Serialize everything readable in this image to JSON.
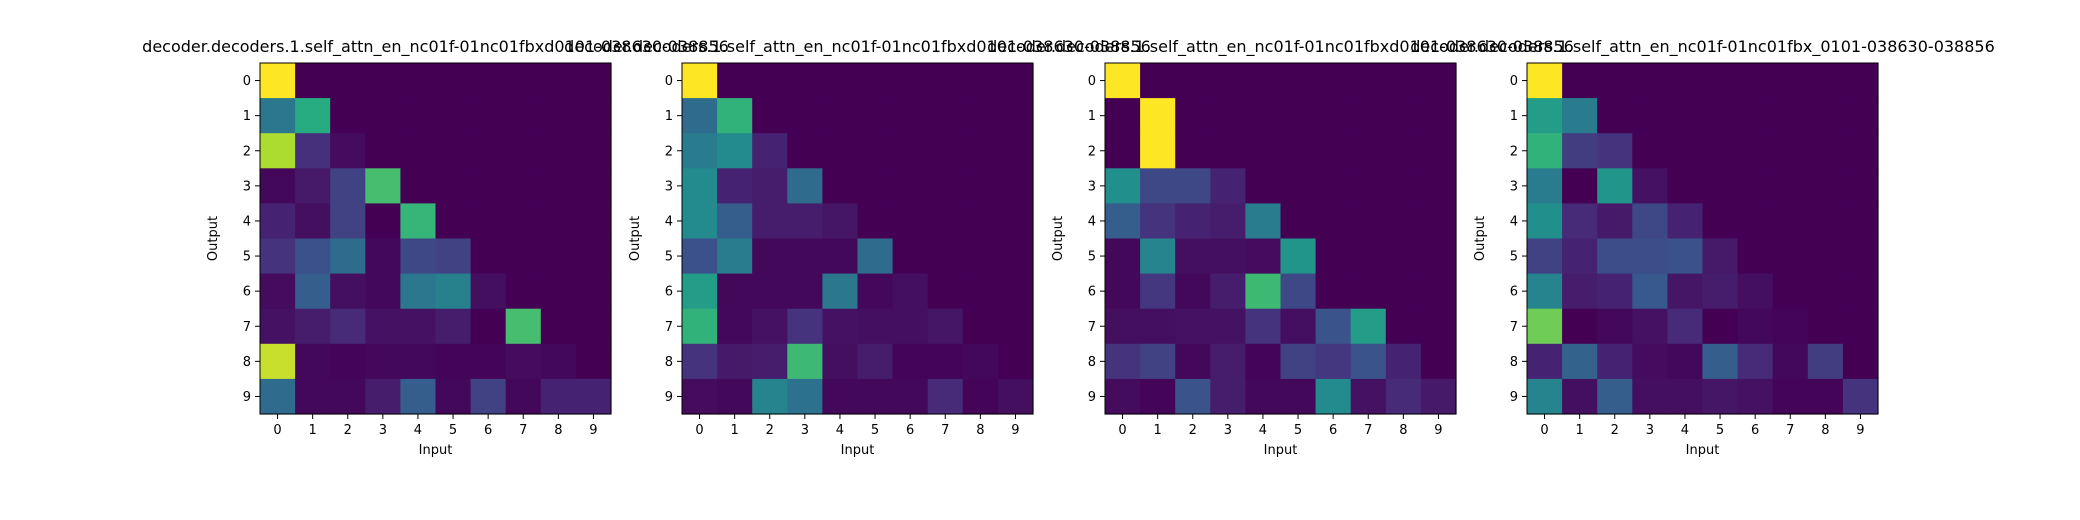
{
  "chart_data": [
    {
      "type": "heatmap",
      "title": "decoder.decoders.1.self_attn_en_nc01f-01nc01fbxd0101-038630-038856",
      "xlabel": "Input",
      "ylabel": "Output",
      "x_ticks": [
        "0",
        "1",
        "2",
        "3",
        "4",
        "5",
        "6",
        "7",
        "8",
        "9"
      ],
      "y_ticks": [
        "0",
        "1",
        "2",
        "3",
        "4",
        "5",
        "6",
        "7",
        "8",
        "9"
      ],
      "colormap": "viridis",
      "vmin": 0,
      "vmax": 1,
      "values": [
        [
          1.0,
          0,
          0,
          0,
          0,
          0,
          0,
          0,
          0,
          0
        ],
        [
          0.4,
          0.62,
          0,
          0,
          0,
          0,
          0,
          0,
          0,
          0
        ],
        [
          0.88,
          0.14,
          0.03,
          0,
          0,
          0,
          0,
          0,
          0,
          0
        ],
        [
          0.02,
          0.07,
          0.2,
          0.7,
          0,
          0,
          0,
          0,
          0,
          0
        ],
        [
          0.1,
          0.04,
          0.2,
          0.0,
          0.66,
          0,
          0,
          0,
          0,
          0
        ],
        [
          0.15,
          0.25,
          0.35,
          0.02,
          0.22,
          0.2,
          0,
          0,
          0,
          0
        ],
        [
          0.03,
          0.3,
          0.04,
          0.02,
          0.4,
          0.44,
          0.04,
          0,
          0,
          0
        ],
        [
          0.05,
          0.08,
          0.12,
          0.05,
          0.05,
          0.08,
          0.0,
          0.7,
          0,
          0
        ],
        [
          0.92,
          0.02,
          0.01,
          0.02,
          0.02,
          0.01,
          0.01,
          0.03,
          0.02,
          0
        ],
        [
          0.35,
          0.02,
          0.02,
          0.08,
          0.3,
          0.02,
          0.2,
          0.02,
          0.1,
          0.1
        ]
      ]
    },
    {
      "type": "heatmap",
      "title": "decoder.decoders.1.self_attn_en_nc01f-01nc01fbxd0101-038630-038856",
      "xlabel": "Input",
      "ylabel": "Output",
      "x_ticks": [
        "0",
        "1",
        "2",
        "3",
        "4",
        "5",
        "6",
        "7",
        "8",
        "9"
      ],
      "y_ticks": [
        "0",
        "1",
        "2",
        "3",
        "4",
        "5",
        "6",
        "7",
        "8",
        "9"
      ],
      "colormap": "viridis",
      "vmin": 0,
      "vmax": 1,
      "values": [
        [
          1.0,
          0,
          0,
          0,
          0,
          0,
          0,
          0,
          0,
          0
        ],
        [
          0.35,
          0.65,
          0,
          0,
          0,
          0,
          0,
          0,
          0,
          0
        ],
        [
          0.42,
          0.48,
          0.1,
          0,
          0,
          0,
          0,
          0,
          0,
          0
        ],
        [
          0.48,
          0.1,
          0.08,
          0.35,
          0,
          0,
          0,
          0,
          0,
          0
        ],
        [
          0.48,
          0.3,
          0.08,
          0.08,
          0.06,
          0,
          0,
          0,
          0,
          0
        ],
        [
          0.25,
          0.42,
          0.02,
          0.02,
          0.02,
          0.35,
          0,
          0,
          0,
          0
        ],
        [
          0.55,
          0.02,
          0.02,
          0.02,
          0.4,
          0.02,
          0.04,
          0,
          0,
          0
        ],
        [
          0.65,
          0.02,
          0.05,
          0.15,
          0.05,
          0.04,
          0.04,
          0.06,
          0,
          0
        ],
        [
          0.15,
          0.07,
          0.08,
          0.68,
          0.04,
          0.08,
          0.01,
          0.01,
          0.02,
          0
        ],
        [
          0.03,
          0.02,
          0.45,
          0.38,
          0.02,
          0.02,
          0.02,
          0.12,
          0.01,
          0.04
        ]
      ]
    },
    {
      "type": "heatmap",
      "title": "decoder.decoders.1.self_attn_en_nc01f-01nc01fbxd0101-038630-038856",
      "xlabel": "Input",
      "ylabel": "Output",
      "x_ticks": [
        "0",
        "1",
        "2",
        "3",
        "4",
        "5",
        "6",
        "7",
        "8",
        "9"
      ],
      "y_ticks": [
        "0",
        "1",
        "2",
        "3",
        "4",
        "5",
        "6",
        "7",
        "8",
        "9"
      ],
      "colormap": "viridis",
      "vmin": 0,
      "vmax": 1,
      "values": [
        [
          1.0,
          0,
          0,
          0,
          0,
          0,
          0,
          0,
          0,
          0
        ],
        [
          0.0,
          1.0,
          0,
          0,
          0,
          0,
          0,
          0,
          0,
          0
        ],
        [
          0.0,
          1.0,
          0.0,
          0,
          0,
          0,
          0,
          0,
          0,
          0
        ],
        [
          0.5,
          0.22,
          0.22,
          0.1,
          0,
          0,
          0,
          0,
          0,
          0
        ],
        [
          0.3,
          0.15,
          0.1,
          0.08,
          0.42,
          0,
          0,
          0,
          0,
          0
        ],
        [
          0.02,
          0.45,
          0.04,
          0.04,
          0.03,
          0.52,
          0,
          0,
          0,
          0
        ],
        [
          0.02,
          0.16,
          0.02,
          0.08,
          0.68,
          0.22,
          0,
          0,
          0,
          0
        ],
        [
          0.04,
          0.04,
          0.05,
          0.05,
          0.15,
          0.04,
          0.26,
          0.55,
          0,
          0
        ],
        [
          0.15,
          0.2,
          0.02,
          0.08,
          0.01,
          0.2,
          0.16,
          0.26,
          0.1,
          0
        ],
        [
          0.03,
          0.01,
          0.26,
          0.08,
          0.02,
          0.02,
          0.48,
          0.05,
          0.12,
          0.07
        ]
      ]
    },
    {
      "type": "heatmap",
      "title": "decoder.decoders.1.self_attn_en_nc01f-01nc01fbx_0101-038630-038856",
      "xlabel": "Input",
      "ylabel": "Output",
      "x_ticks": [
        "0",
        "1",
        "2",
        "3",
        "4",
        "5",
        "6",
        "7",
        "8",
        "9"
      ],
      "y_ticks": [
        "0",
        "1",
        "2",
        "3",
        "4",
        "5",
        "6",
        "7",
        "8",
        "9"
      ],
      "colormap": "viridis",
      "vmin": 0,
      "vmax": 1,
      "values": [
        [
          1.0,
          0,
          0,
          0,
          0,
          0,
          0,
          0,
          0,
          0
        ],
        [
          0.55,
          0.42,
          0,
          0,
          0,
          0,
          0,
          0,
          0,
          0
        ],
        [
          0.65,
          0.18,
          0.15,
          0,
          0,
          0,
          0,
          0,
          0,
          0
        ],
        [
          0.42,
          0.0,
          0.52,
          0.05,
          0,
          0,
          0,
          0,
          0,
          0
        ],
        [
          0.5,
          0.12,
          0.07,
          0.22,
          0.1,
          0,
          0,
          0,
          0,
          0
        ],
        [
          0.2,
          0.1,
          0.24,
          0.24,
          0.25,
          0.07,
          0,
          0,
          0,
          0
        ],
        [
          0.45,
          0.08,
          0.1,
          0.28,
          0.06,
          0.08,
          0.04,
          0,
          0,
          0
        ],
        [
          0.78,
          0.0,
          0.02,
          0.05,
          0.12,
          0.0,
          0.02,
          0.01,
          0,
          0
        ],
        [
          0.1,
          0.32,
          0.1,
          0.03,
          0.02,
          0.3,
          0.12,
          0.02,
          0.18,
          0
        ],
        [
          0.45,
          0.04,
          0.3,
          0.04,
          0.04,
          0.06,
          0.05,
          0.01,
          0.01,
          0.15
        ]
      ]
    }
  ]
}
